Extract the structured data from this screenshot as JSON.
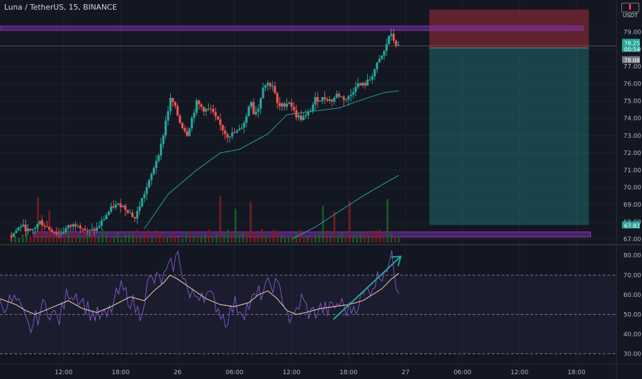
{
  "header": {
    "title": "Luna / TetherUS, 15, BINANCE",
    "currency": "USDT"
  },
  "colors": {
    "background": "#131722",
    "up": "#26a69a",
    "down": "#ef5350",
    "zone": "#7b3fbf",
    "ma_fast": "#26a69a",
    "ma_slow": "#26a69a",
    "rsi": "#7e57c2",
    "rsi_ma": "#e6c9a8",
    "arrow": "#26a69a",
    "stop_zone": "#f23645",
    "target_zone": "#26a69a"
  },
  "price_badges": {
    "last_price": "78.25",
    "countdown": "00:54",
    "entry": "78.08",
    "target": "67.82"
  },
  "chart_data": [
    {
      "type": "candlestick",
      "title": "Luna / TetherUS, 15, BINANCE",
      "ylim": [
        66.8,
        80.3
      ],
      "y_ticks": [
        "79.00",
        "78.00",
        "77.00",
        "76.00",
        "75.00",
        "74.00",
        "73.00",
        "72.00",
        "71.00",
        "70.00",
        "69.00",
        "68.00",
        "67.00"
      ],
      "x_ticks": [
        "12:00",
        "18:00",
        "26",
        "06:00",
        "12:00",
        "18:00",
        "27",
        "06:00",
        "12:00",
        "18:00"
      ],
      "x_tick_times": [
        12,
        18,
        24,
        30,
        36,
        42,
        48,
        54,
        60,
        66
      ],
      "x_range": [
        5.3,
        72.9
      ],
      "close_anchors": [
        [
          6.5,
          67.2
        ],
        [
          7.5,
          67.8
        ],
        [
          8.5,
          67.4
        ],
        [
          9.5,
          68.0
        ],
        [
          10.5,
          67.6
        ],
        [
          11.5,
          67.3
        ],
        [
          12.5,
          67.7
        ],
        [
          13.5,
          67.9
        ],
        [
          14.5,
          67.4
        ],
        [
          15.5,
          67.6
        ],
        [
          16.5,
          68.4
        ],
        [
          17.2,
          68.9
        ],
        [
          18.0,
          69.0
        ],
        [
          18.7,
          68.7
        ],
        [
          19.5,
          68.2
        ],
        [
          20.3,
          69.4
        ],
        [
          21.0,
          70.3
        ],
        [
          21.7,
          71.5
        ],
        [
          22.3,
          72.5
        ],
        [
          22.8,
          74.0
        ],
        [
          23.3,
          75.2
        ],
        [
          23.8,
          74.5
        ],
        [
          24.3,
          73.7
        ],
        [
          25.0,
          73.1
        ],
        [
          25.5,
          74.0
        ],
        [
          26.0,
          74.9
        ],
        [
          26.8,
          74.5
        ],
        [
          27.5,
          74.5
        ],
        [
          28.0,
          74.0
        ],
        [
          28.6,
          73.5
        ],
        [
          29.2,
          73.0
        ],
        [
          29.8,
          73.1
        ],
        [
          30.5,
          73.3
        ],
        [
          31.2,
          74.0
        ],
        [
          31.7,
          75.2
        ],
        [
          32.0,
          74.3
        ],
        [
          32.5,
          74.6
        ],
        [
          33.0,
          75.9
        ],
        [
          33.5,
          76.0
        ],
        [
          34.0,
          75.9
        ],
        [
          34.6,
          74.6
        ],
        [
          35.2,
          74.8
        ],
        [
          35.8,
          75.0
        ],
        [
          36.4,
          74.2
        ],
        [
          37.0,
          74.0
        ],
        [
          37.5,
          74.1
        ],
        [
          38.0,
          74.5
        ],
        [
          38.5,
          75.1
        ],
        [
          39.0,
          75.1
        ],
        [
          39.6,
          75.2
        ],
        [
          40.2,
          75.0
        ],
        [
          40.8,
          75.4
        ],
        [
          41.3,
          75.2
        ],
        [
          41.8,
          75.1
        ],
        [
          42.3,
          75.4
        ],
        [
          42.8,
          76.0
        ],
        [
          43.3,
          75.9
        ],
        [
          43.8,
          76.0
        ],
        [
          44.3,
          76.3
        ],
        [
          44.8,
          76.9
        ],
        [
          45.3,
          77.4
        ],
        [
          45.8,
          77.9
        ],
        [
          46.3,
          78.9
        ],
        [
          46.6,
          78.7
        ],
        [
          47.0,
          78.3
        ],
        [
          47.3,
          78.1
        ]
      ],
      "candles": {
        "start_time": 6.5,
        "end_time": 47.3,
        "interval": 0.25,
        "high_low_spread": 0.12,
        "noise_amplitude": 0.3
      },
      "ma_fast": [
        [
          20.5,
          67.6
        ],
        [
          23.0,
          69.6
        ],
        [
          26.0,
          71.0
        ],
        [
          28.5,
          72.0
        ],
        [
          30.5,
          72.2
        ],
        [
          33.5,
          73.1
        ],
        [
          35.5,
          74.2
        ],
        [
          38.0,
          74.4
        ],
        [
          41.0,
          74.6
        ],
        [
          43.5,
          75.1
        ],
        [
          45.8,
          75.5
        ],
        [
          47.3,
          75.6
        ]
      ],
      "ma_slow": [
        [
          36.0,
          67.0
        ],
        [
          38.5,
          67.7
        ],
        [
          41.0,
          68.6
        ],
        [
          43.5,
          69.5
        ],
        [
          46.0,
          70.3
        ],
        [
          47.3,
          70.7
        ]
      ],
      "volume": {
        "start_time": 6.5,
        "end_time": 47.3,
        "interval": 0.4,
        "max_label": "tall spikes near 18:00, 06:00 and 18:00"
      },
      "horizontal_zones": [
        {
          "ymin": 79.1,
          "ymax": 79.35,
          "x_from": 5.3,
          "x_to": 66.7
        },
        {
          "ymin": 67.12,
          "ymax": 67.42,
          "x_from": 8.8,
          "x_to": 67.5
        }
      ],
      "position_tool": {
        "x_from": 50.5,
        "x_to": 67.3,
        "stop_top": 80.3,
        "entry": 78.08,
        "target": 67.82
      }
    },
    {
      "type": "line",
      "title": "",
      "ylim": [
        27,
        82
      ],
      "y_ticks": [
        "80.00",
        "70.00",
        "60.00",
        "50.00",
        "40.00",
        "30.00"
      ],
      "bands": [
        70,
        50,
        30
      ],
      "rsi_anchors": [
        [
          5.3,
          55
        ],
        [
          7.0,
          57
        ],
        [
          8.4,
          42
        ],
        [
          10.0,
          55
        ],
        [
          11.5,
          47
        ],
        [
          12.5,
          62
        ],
        [
          13.5,
          60
        ],
        [
          15.0,
          50
        ],
        [
          16.5,
          48
        ],
        [
          18.0,
          63
        ],
        [
          19.0,
          58
        ],
        [
          20.0,
          50
        ],
        [
          21.0,
          67
        ],
        [
          22.5,
          68
        ],
        [
          24.1,
          80
        ],
        [
          25.3,
          58
        ],
        [
          26.5,
          62
        ],
        [
          28.0,
          56
        ],
        [
          29.0,
          47
        ],
        [
          30.0,
          55
        ],
        [
          31.0,
          52
        ],
        [
          32.5,
          60
        ],
        [
          34.1,
          66
        ],
        [
          35.0,
          60
        ],
        [
          36.0,
          45
        ],
        [
          37.0,
          58
        ],
        [
          38.0,
          50
        ],
        [
          39.0,
          53
        ],
        [
          40.0,
          52
        ],
        [
          41.0,
          56
        ],
        [
          42.0,
          52
        ],
        [
          43.0,
          56
        ],
        [
          44.0,
          62
        ],
        [
          45.0,
          68
        ],
        [
          46.0,
          75
        ],
        [
          46.6,
          78
        ],
        [
          47.0,
          67
        ],
        [
          47.3,
          64
        ]
      ],
      "rsi_ma": [
        [
          5.3,
          58
        ],
        [
          7.0,
          55
        ],
        [
          8.0,
          52
        ],
        [
          9.0,
          50
        ],
        [
          10.5,
          53
        ],
        [
          12.5,
          57
        ],
        [
          14.0,
          53
        ],
        [
          15.5,
          51
        ],
        [
          17.0,
          54
        ],
        [
          19.0,
          59
        ],
        [
          20.5,
          57
        ],
        [
          21.5,
          62
        ],
        [
          22.5,
          66
        ],
        [
          23.2,
          70
        ],
        [
          24.0,
          68
        ],
        [
          25.5,
          63
        ],
        [
          27.0,
          58
        ],
        [
          28.5,
          55
        ],
        [
          30.0,
          54
        ],
        [
          31.5,
          56
        ],
        [
          32.5,
          60
        ],
        [
          33.5,
          62
        ],
        [
          34.5,
          58
        ],
        [
          35.5,
          52
        ],
        [
          36.5,
          50
        ],
        [
          37.5,
          51
        ],
        [
          39.0,
          53
        ],
        [
          40.5,
          54
        ],
        [
          42.0,
          55
        ],
        [
          43.5,
          57
        ],
        [
          44.5,
          60
        ],
        [
          45.5,
          63
        ],
        [
          46.5,
          68
        ],
        [
          47.3,
          71
        ]
      ],
      "trend_arrow": {
        "from": [
          40.4,
          47.5
        ],
        "to": [
          47.5,
          79.5
        ]
      }
    }
  ]
}
